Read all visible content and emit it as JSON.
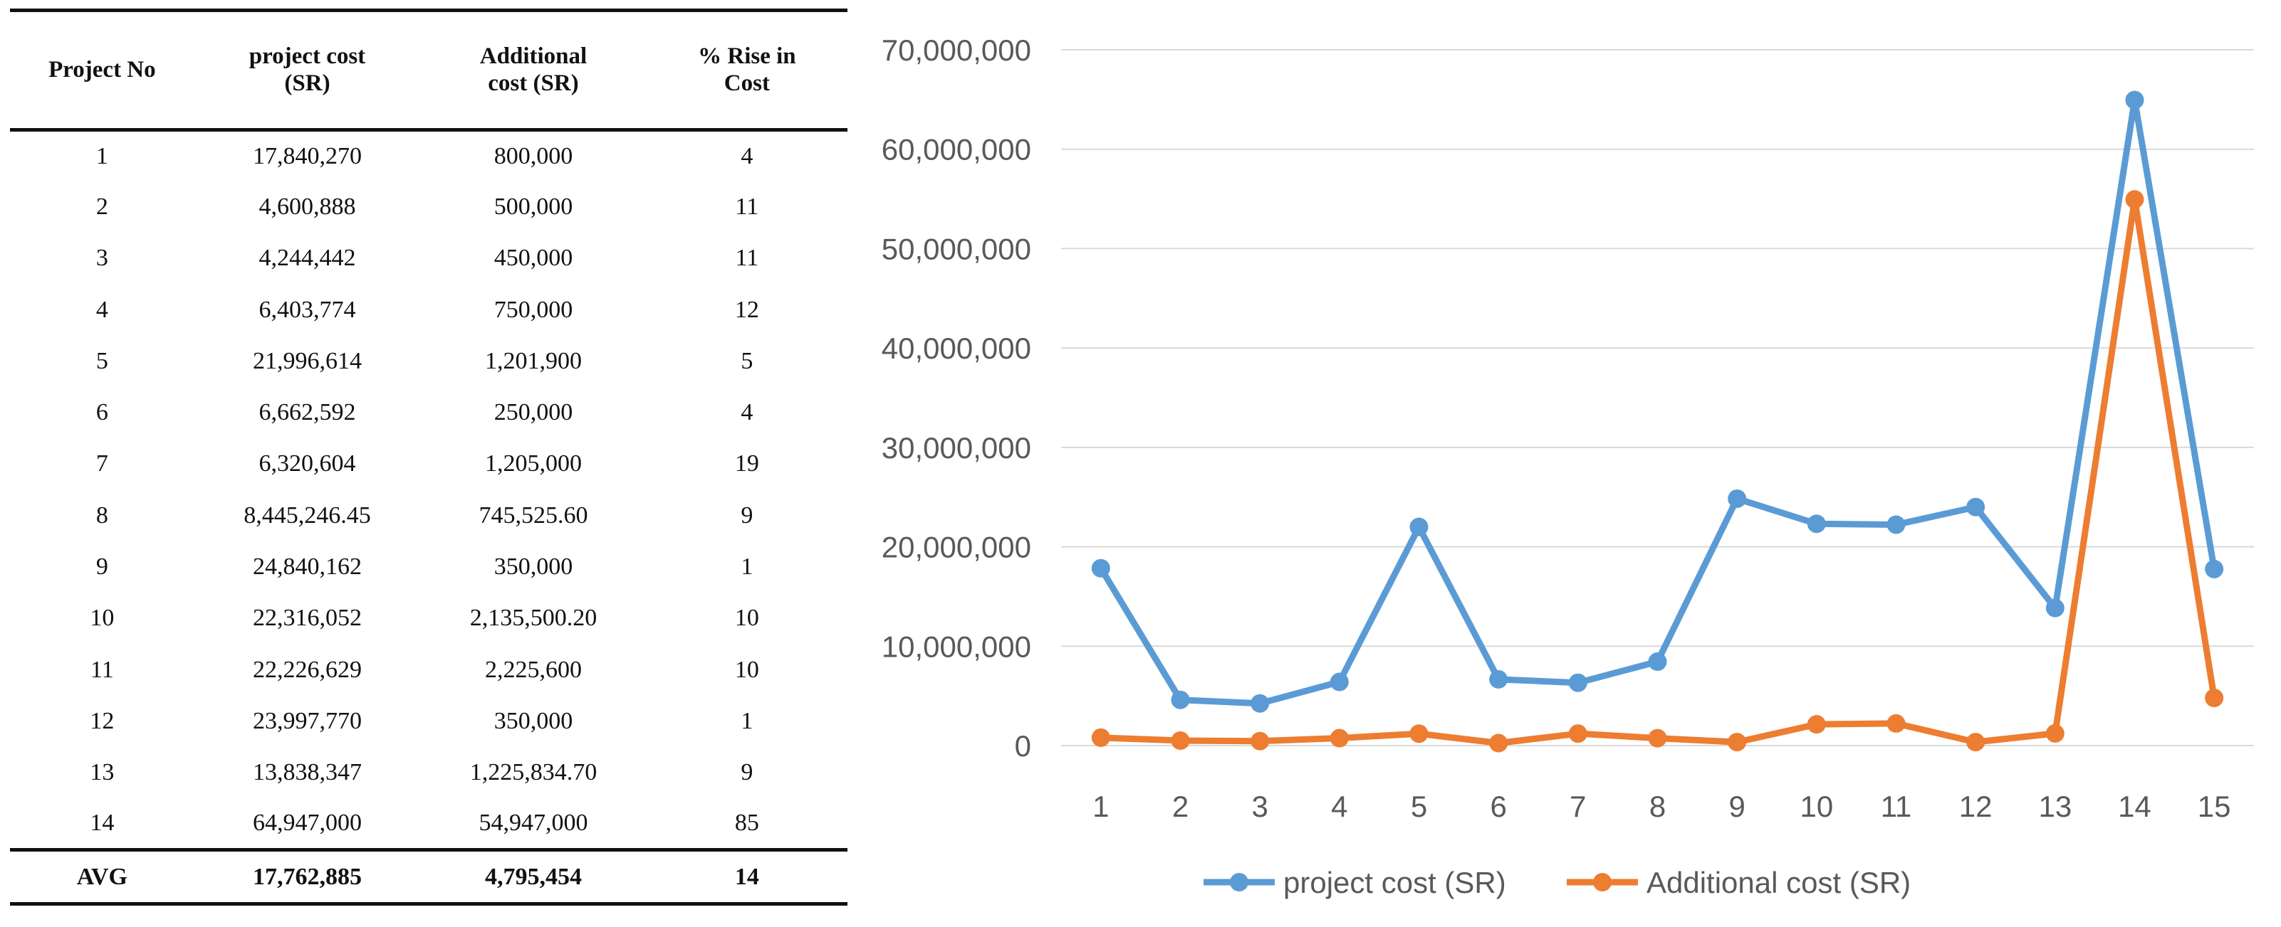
{
  "table": {
    "headers": [
      [
        "Project No"
      ],
      [
        "project cost",
        "(SR)"
      ],
      [
        "Additional",
        "cost (SR)"
      ],
      [
        "% Rise in",
        "Cost"
      ]
    ],
    "rows": [
      [
        "1",
        "17,840,270",
        "800,000",
        "4"
      ],
      [
        "2",
        "4,600,888",
        "500,000",
        "11"
      ],
      [
        "3",
        "4,244,442",
        "450,000",
        "11"
      ],
      [
        "4",
        "6,403,774",
        "750,000",
        "12"
      ],
      [
        "5",
        "21,996,614",
        "1,201,900",
        "5"
      ],
      [
        "6",
        "6,662,592",
        "250,000",
        "4"
      ],
      [
        "7",
        "6,320,604",
        "1,205,000",
        "19"
      ],
      [
        "8",
        "8,445,246.45",
        "745,525.60",
        "9"
      ],
      [
        "9",
        "24,840,162",
        "350,000",
        "1"
      ],
      [
        "10",
        "22,316,052",
        "2,135,500.20",
        "10"
      ],
      [
        "11",
        "22,226,629",
        "2,225,600",
        "10"
      ],
      [
        "12",
        "23,997,770",
        "350,000",
        "1"
      ],
      [
        "13",
        "13,838,347",
        "1,225,834.70",
        "9"
      ],
      [
        "14",
        "64,947,000",
        "54,947,000",
        "85"
      ]
    ],
    "footer": [
      "AVG",
      "17,762,885",
      "4,795,454",
      "14"
    ]
  },
  "chart_data": {
    "type": "line",
    "title": "",
    "xlabel": "",
    "ylabel": "",
    "x": [
      1,
      2,
      3,
      4,
      5,
      6,
      7,
      8,
      9,
      10,
      11,
      12,
      13,
      14,
      15
    ],
    "ylim": [
      0,
      70000000
    ],
    "yticks": [
      0,
      10000000,
      20000000,
      30000000,
      40000000,
      50000000,
      60000000,
      70000000
    ],
    "ytick_labels": [
      "0",
      "10,000,000",
      "20,000,000",
      "30,000,000",
      "40,000,000",
      "50,000,000",
      "60,000,000",
      "70,000,000"
    ],
    "grid": true,
    "legend": "bottom",
    "series": [
      {
        "name": "project cost (SR)",
        "color": "#5b9bd5",
        "values": [
          17840270,
          4600888,
          4244442,
          6403774,
          21996614,
          6662592,
          6320604,
          8445246.45,
          24840162,
          22316052,
          22226629,
          23997770,
          13838347,
          64947000,
          17762885
        ]
      },
      {
        "name": "Additional cost (SR)",
        "color": "#ed7d31",
        "values": [
          800000,
          500000,
          450000,
          750000,
          1201900,
          250000,
          1205000,
          745525.6,
          350000,
          2135500.2,
          2225600,
          350000,
          1225834.7,
          54947000,
          4795454
        ]
      }
    ]
  }
}
